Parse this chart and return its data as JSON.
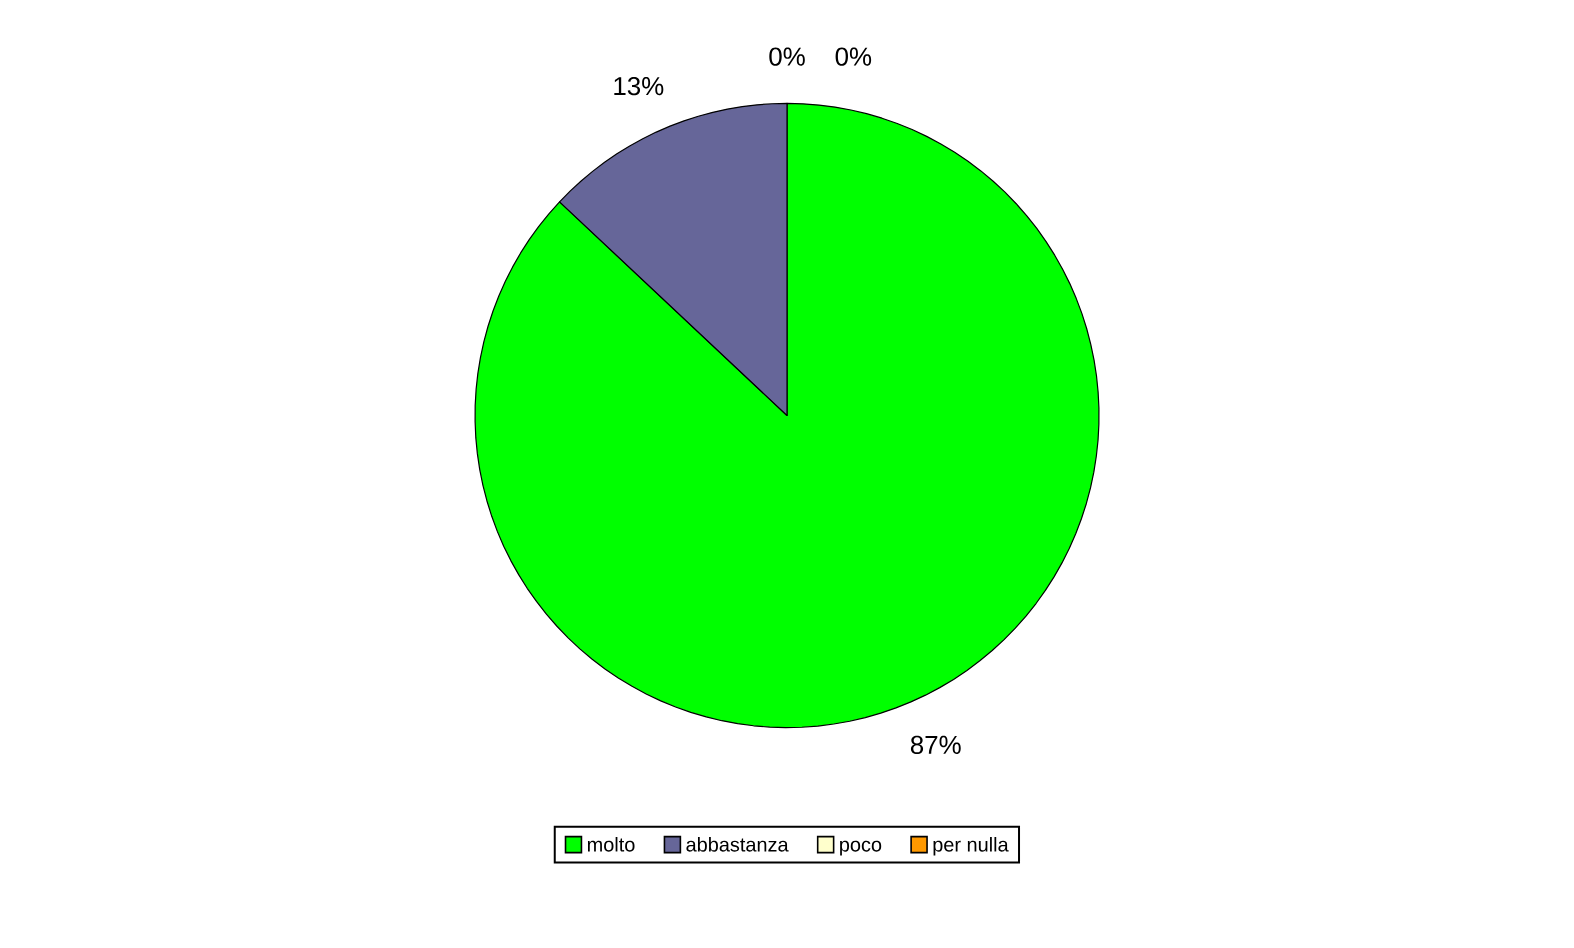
{
  "chart_data": {
    "type": "pie",
    "categories": [
      "molto",
      "abbastanza",
      "poco",
      "per nulla"
    ],
    "values": [
      87,
      13,
      0,
      0
    ],
    "colors": [
      "#00ff00",
      "#666699",
      "#ffffcc",
      "#ff9900"
    ],
    "value_labels": [
      "87%",
      "13%",
      "0%",
      "0%"
    ],
    "legend": "bottom"
  }
}
